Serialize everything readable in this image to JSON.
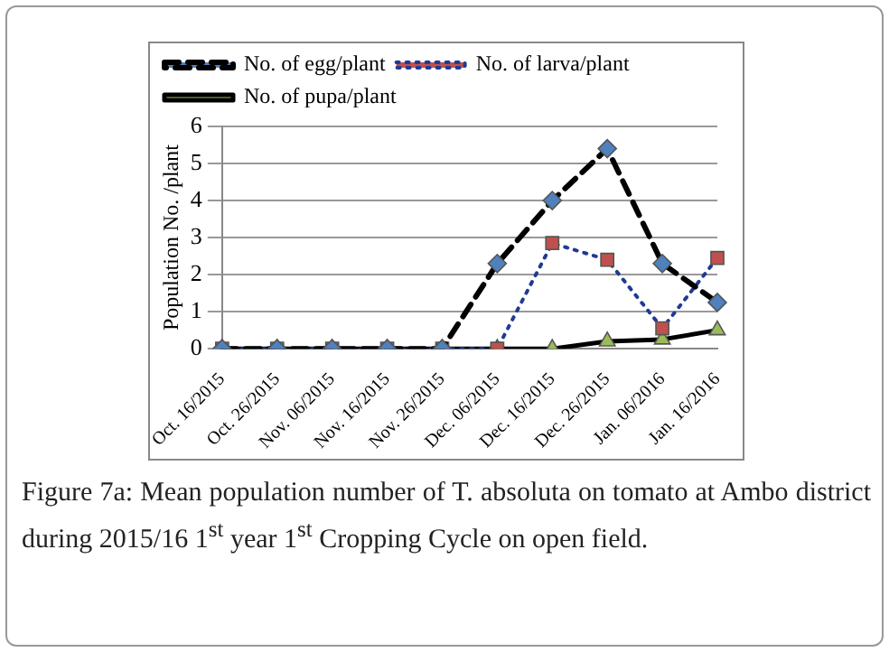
{
  "chart_data": {
    "type": "line",
    "ylabel": "Population No. /plant",
    "categories": [
      "Oct. 16/2015",
      "Oct. 26/2015",
      "Nov. 06/2015",
      "Nov. 16/2015",
      "Nov. 26/2015",
      "Dec. 06/2015",
      "Dec. 16/2015",
      "Dec. 26/2015",
      "Jan. 06/2016",
      "Jan. 16/2016"
    ],
    "series": [
      {
        "name": "No. of egg/plant",
        "color": "#000000",
        "line_style": "dashed",
        "marker": "diamond",
        "colors": [
          "#4f81bd",
          "#4f81bd",
          "#4f81bd",
          "#4f81bd",
          "#4f81bd",
          "#4f81bd",
          "#4f81bd",
          "#4f81bd",
          "#4f81bd",
          "#4f81bd"
        ],
        "values": [
          0,
          0,
          0,
          0,
          0,
          2.3,
          4.0,
          5.4,
          2.3,
          1.25
        ]
      },
      {
        "name": "No. of larva/plant",
        "color": "#1f3a93",
        "line_style": "dotted",
        "marker": "square",
        "colors": [
          "#c0504d",
          "#c0504d",
          "#c0504d",
          "#c0504d",
          "#c0504d",
          "#c0504d",
          "#c0504d",
          "#c0504d",
          "#c0504d",
          "#c0504d"
        ],
        "values": [
          0,
          0,
          0,
          0,
          0,
          0,
          2.85,
          2.4,
          0.55,
          2.45
        ]
      },
      {
        "name": "No. of pupa/plant",
        "color": "#000000",
        "line_style": "solid",
        "marker": "triangle",
        "colors": [
          "#9bbb59",
          "#9bbb59",
          "#9bbb59",
          "#9bbb59",
          "#9bbb59",
          "#9bbb59",
          "#9bbb59",
          "#9bbb59",
          "#9bbb59",
          "#9bbb59"
        ],
        "values": [
          0,
          0,
          0,
          0,
          0,
          0,
          0,
          0.2,
          0.25,
          0.5
        ]
      }
    ],
    "ylim": [
      0,
      6
    ],
    "yticks": [
      0,
      1,
      2,
      3,
      4,
      5,
      6
    ],
    "grid": "y",
    "legend": "top",
    "annotations": [
      "Figure 7a: Mean population number of T. absoluta on tomato at Ambo district during 2015/16 1$^{st}$ year 1$^{st}$ Cropping Cycle on open field."
    ]
  }
}
